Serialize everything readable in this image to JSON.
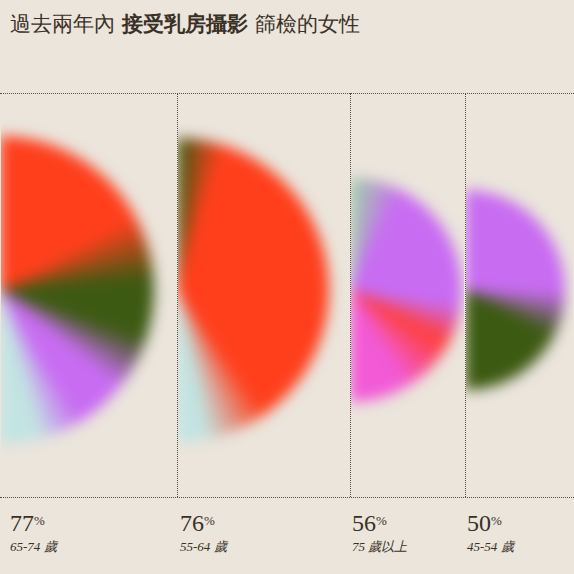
{
  "chart_data": {
    "type": "pie",
    "title": "過去兩年內 接受乳房攝影 篩檢的女性",
    "categories": [
      "65-74 歲",
      "55-64 歲",
      "75 歲以上",
      "45-54 歲"
    ],
    "values": [
      77,
      76,
      56,
      50
    ],
    "value_labels": [
      "77%",
      "76%",
      "56%",
      "50%"
    ]
  }
}
